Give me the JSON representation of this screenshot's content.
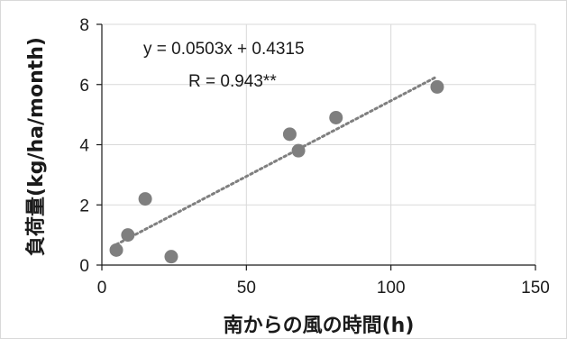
{
  "chart_data": {
    "type": "scatter",
    "title": "",
    "xlabel": "南からの風の時間(h)",
    "ylabel": "負荷量(kg/ha/month)",
    "xlim": [
      0,
      150
    ],
    "ylim": [
      0,
      8
    ],
    "xticks": [
      "0",
      "50",
      "100",
      "150"
    ],
    "yticks": [
      "0",
      "2",
      "4",
      "6",
      "8"
    ],
    "grid": true,
    "legend": "none",
    "marker_color": "#7f7f7f",
    "trendline_color": "#7f7f7f",
    "points": [
      {
        "x": 5,
        "y": 0.5
      },
      {
        "x": 9,
        "y": 1.0
      },
      {
        "x": 15,
        "y": 2.2
      },
      {
        "x": 24,
        "y": 0.28
      },
      {
        "x": 65,
        "y": 4.35
      },
      {
        "x": 68,
        "y": 3.8
      },
      {
        "x": 81,
        "y": 4.9
      },
      {
        "x": 116,
        "y": 5.92
      }
    ],
    "trendline": {
      "type": "linear",
      "slope": 0.0503,
      "intercept": 0.4315,
      "x_range": [
        5,
        116
      ]
    },
    "annotations": {
      "equation": "y = 0.0503x + 0.4315",
      "r_value": "R = 0.943**"
    }
  }
}
